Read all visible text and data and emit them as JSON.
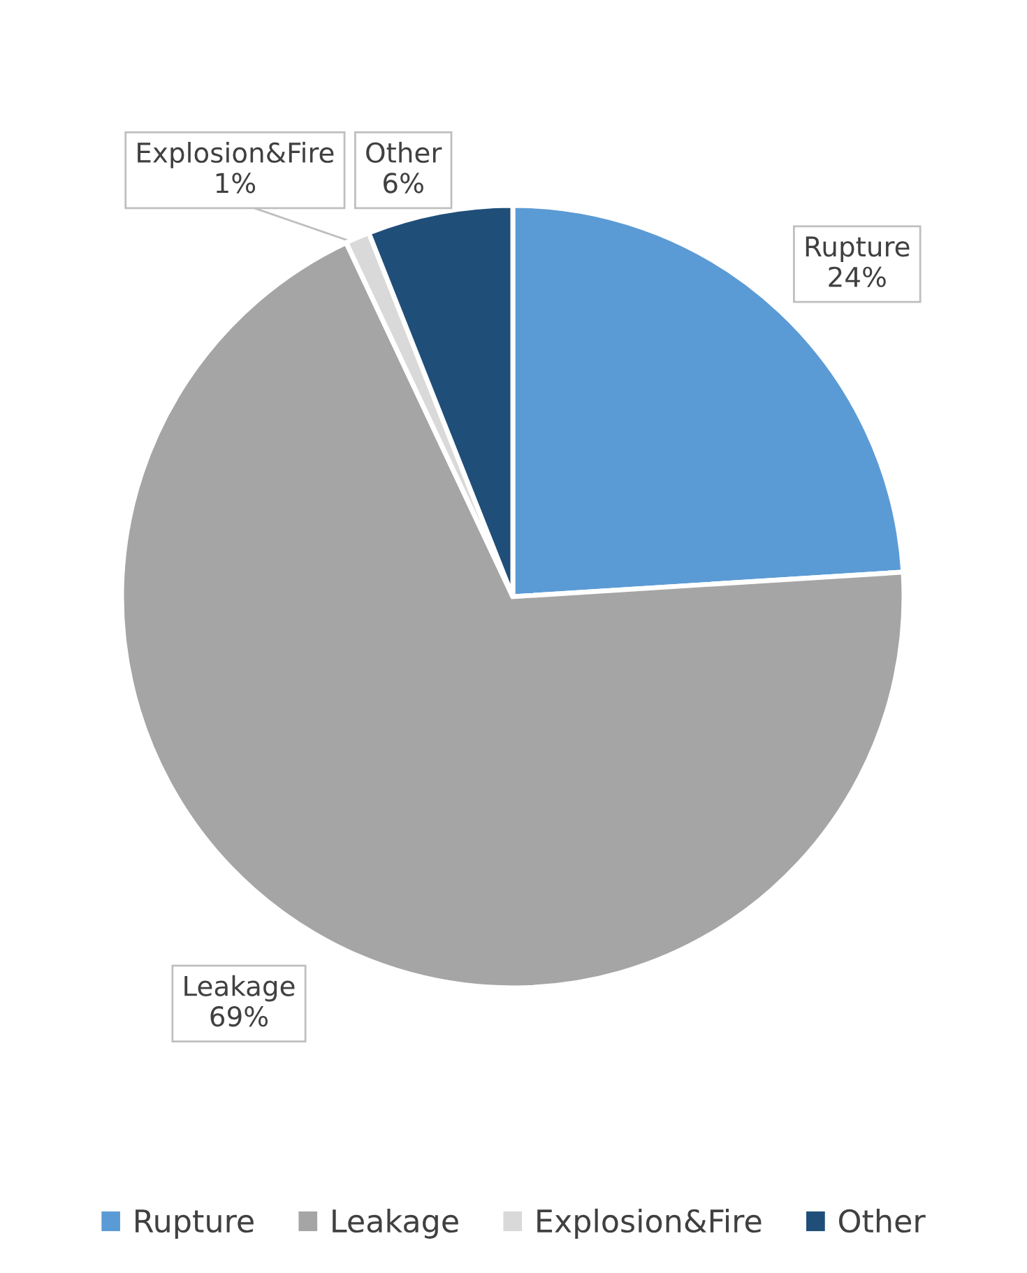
{
  "chart_data": {
    "type": "pie",
    "categories": [
      "Rupture",
      "Leakage",
      "Explosion&Fire",
      "Other"
    ],
    "values": [
      24,
      69,
      1,
      6
    ],
    "colors": [
      "#5b9bd5",
      "#a5a5a5",
      "#d9d9d9",
      "#1f4e79"
    ],
    "value_labels": [
      "24%",
      "69%",
      "1%",
      "6%"
    ],
    "legend": "bottom"
  }
}
